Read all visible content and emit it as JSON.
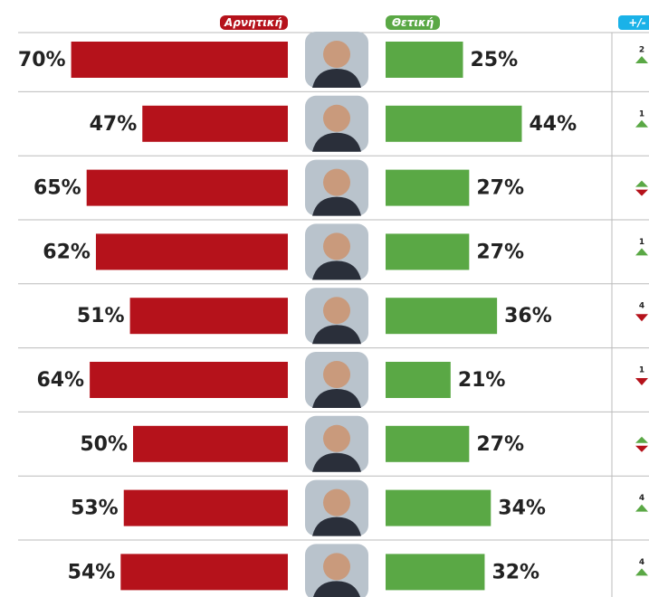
{
  "chart_data": {
    "type": "diverging_bar",
    "series": [
      {
        "name": "Αρνητική",
        "color": "#b5121b",
        "side": "left",
        "values": [
          70,
          47,
          65,
          62,
          51,
          64,
          50,
          53,
          54
        ],
        "value_labels": [
          "70%",
          "47%",
          "65%",
          "62%",
          "51%",
          "64%",
          "50%",
          "53%",
          "54%"
        ]
      },
      {
        "name": "Θετική",
        "color": "#5aa845",
        "side": "right",
        "values": [
          25,
          44,
          27,
          27,
          36,
          21,
          27,
          34,
          32
        ],
        "value_labels": [
          "25%",
          "44%",
          "27%",
          "27%",
          "36%",
          "21%",
          "27%",
          "34%",
          "32%"
        ]
      }
    ],
    "change_title": "+/-",
    "changes": [
      2,
      1,
      0,
      1,
      -4,
      -1,
      0,
      4,
      4
    ],
    "change_labels": [
      "2",
      "1",
      null,
      "1",
      "4",
      "1",
      null,
      "4",
      "4"
    ],
    "change_color": "#1ab2e8"
  }
}
